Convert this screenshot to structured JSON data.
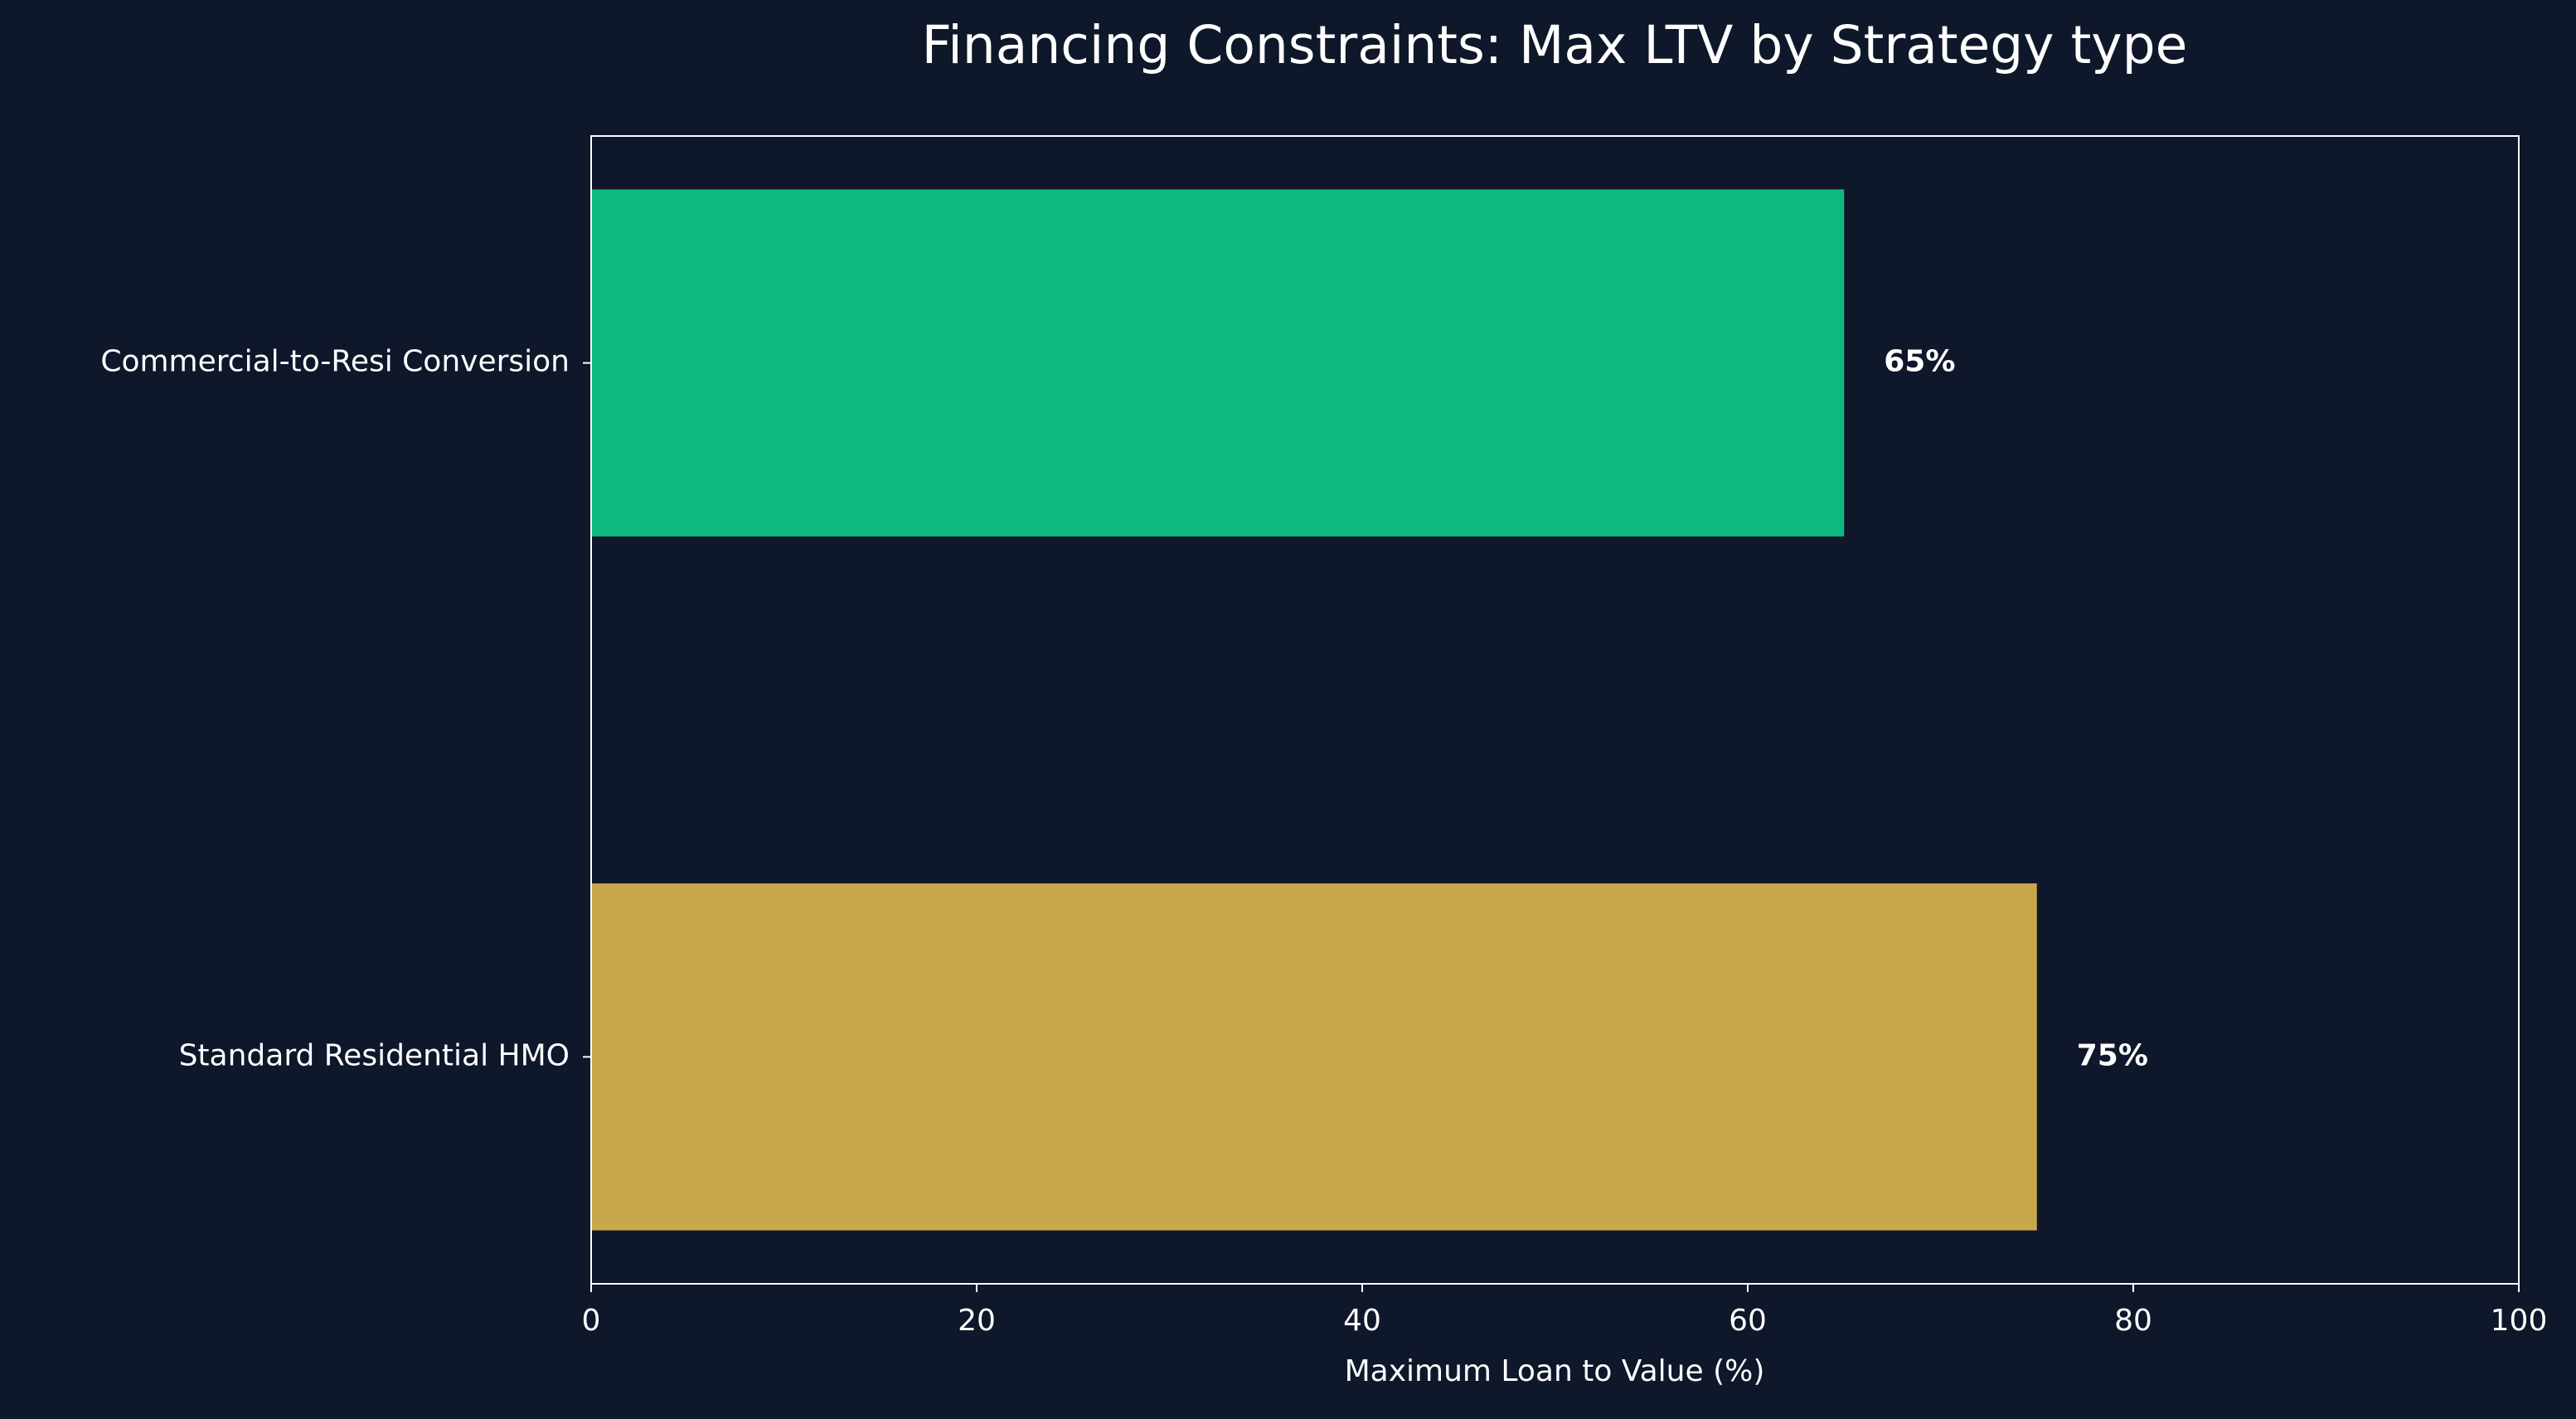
{
  "chart_data": {
    "type": "barh",
    "title": "Financing Constraints: Max LTV by Strategy type",
    "xlabel": "Maximum Loan to Value (%)",
    "categories": [
      "Commercial-to-Resi Conversion",
      "Standard Residential HMO"
    ],
    "values": [
      65,
      75
    ],
    "value_labels": [
      "65%",
      "75%"
    ],
    "colors": [
      "#10b981",
      "#c9a84c"
    ],
    "xlim": [
      0,
      100
    ],
    "xticks": [
      0,
      20,
      40,
      60,
      80,
      100
    ]
  }
}
